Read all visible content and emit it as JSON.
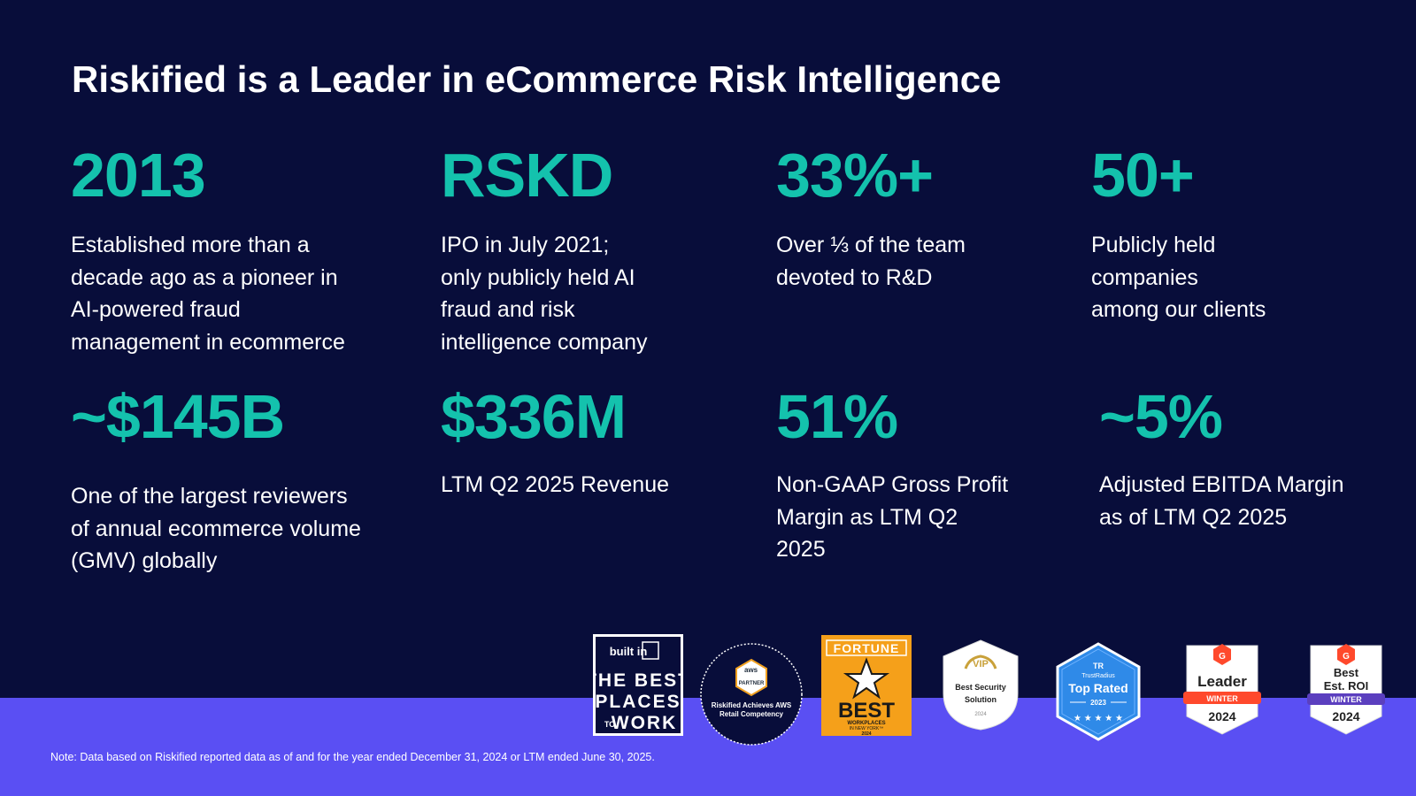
{
  "title": "Riskified is a Leader in eCommerce Risk Intelligence",
  "stats": [
    {
      "value": "2013",
      "desc": "Established more than a\ndecade ago as a pioneer in\nAI-powered fraud\nmanagement in ecommerce"
    },
    {
      "value": "RSKD",
      "desc": "IPO in July 2021;\nonly publicly held AI\nfraud and risk\nintelligence company"
    },
    {
      "value": "33%+",
      "desc": "Over ⅓ of the team\ndevoted to R&D"
    },
    {
      "value": "50+",
      "desc": "Publicly held\ncompanies\namong our clients"
    },
    {
      "value": "~$145B",
      "desc": "One of the largest reviewers\nof annual ecommerce volume\n(GMV) globally"
    },
    {
      "value": "$336M",
      "desc": "LTM Q2 2025 Revenue"
    },
    {
      "value": "51%",
      "desc": "Non-GAAP Gross Profit\nMargin as LTM Q2\n2025"
    },
    {
      "value": "~5%",
      "desc": "Adjusted EBITDA Margin\nas of LTM Q2 2025"
    }
  ],
  "badges": {
    "builtin": {
      "logo": "built in",
      "line1": "THE BEST",
      "line2": "PLACES",
      "line3_small": "TO",
      "line3": "WORK"
    },
    "aws": {
      "logo": "aws",
      "partner": "PARTNER",
      "caption1": "Riskified Achieves AWS",
      "caption2": "Retail Competency"
    },
    "fortune": {
      "header": "FORTUNE",
      "best": "BEST",
      "sub1": "WORKPLACES",
      "sub2": "IN NEW YORK™",
      "year": "2024"
    },
    "vip": {
      "mark": "VIP",
      "line1": "Best Security",
      "line2": "Solution",
      "year": "2024"
    },
    "trustradius": {
      "brand": "TrustRadius",
      "label": "Top Rated",
      "year": "2023"
    },
    "g2_leader": {
      "label": "Leader",
      "season": "WINTER",
      "year": "2024"
    },
    "g2_roi": {
      "label1": "Best",
      "label2": "Est. ROI",
      "season": "WINTER",
      "year": "2024"
    }
  },
  "note": "Note: Data based on Riskified reported data as of and for the year ended December 31, 2024 or LTM ended June 30, 2025.",
  "colors": {
    "background": "#080d3a",
    "accent": "#14c2ad",
    "band": "#5a4ff3"
  }
}
